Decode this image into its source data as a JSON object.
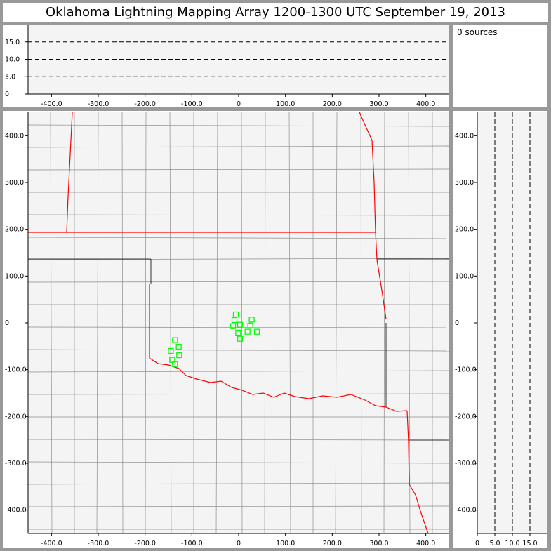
{
  "title": "Oklahoma Lightning Mapping Array   1200-1300 UTC  September 19, 2013",
  "sources_label": "0 sources",
  "colors": {
    "station": "#00ff00",
    "state_border": "#ff0000",
    "county": "#8c8c8c",
    "plot_bg": "#f4f4f4",
    "frame": "#999999"
  },
  "chart_data": [
    {
      "type": "line",
      "name": "altitude-vs-east-west",
      "xlim": [
        -450,
        450
      ],
      "ylim": [
        0,
        20
      ],
      "xticks": [
        "-400.0",
        "-300.0",
        "-200.0",
        "-100.0",
        "0",
        "100.0",
        "200.0",
        "300.0",
        "400.0"
      ],
      "xtick_values": [
        -400,
        -300,
        -200,
        -100,
        0,
        100,
        200,
        300,
        400
      ],
      "yticks": [
        "0",
        "5.0",
        "10.0",
        "15.0"
      ],
      "ytick_values": [
        0,
        5,
        10,
        15
      ],
      "dashed_reference_lines": [
        5,
        10,
        15
      ],
      "series": []
    },
    {
      "type": "scatter",
      "name": "plan-view-map",
      "xlim": [
        -450,
        450
      ],
      "ylim": [
        -450,
        450
      ],
      "xticks": [
        "-400.0",
        "-300.0",
        "-200.0",
        "-100.0",
        "0",
        "100.0",
        "200.0",
        "300.0",
        "400.0"
      ],
      "xtick_values": [
        -400,
        -300,
        -200,
        -100,
        0,
        100,
        200,
        300,
        400
      ],
      "yticks": [
        "400.0",
        "300.0",
        "200.0",
        "100.0",
        "0",
        "-100.0",
        "-200.0",
        "-300.0",
        "-400.0"
      ],
      "ytick_values": [
        400,
        300,
        200,
        100,
        0,
        -100,
        -200,
        -300,
        -400
      ],
      "stations": [
        [
          -6,
          18
        ],
        [
          -9,
          6
        ],
        [
          -12,
          -7
        ],
        [
          3,
          -4
        ],
        [
          -1,
          -21
        ],
        [
          3,
          -34
        ],
        [
          28,
          7
        ],
        [
          25,
          -6
        ],
        [
          19,
          -19
        ],
        [
          39,
          -19
        ],
        [
          -136,
          -37
        ],
        [
          -128,
          -51
        ],
        [
          -145,
          -60
        ],
        [
          -127,
          -69
        ],
        [
          -142,
          -79
        ],
        [
          -136,
          -88
        ]
      ]
    },
    {
      "type": "line",
      "name": "north-south-vs-altitude",
      "xlim": [
        0,
        20
      ],
      "ylim": [
        -450,
        450
      ],
      "xticks": [
        "0",
        "5.0",
        "10.0",
        "15.0"
      ],
      "xtick_values": [
        0,
        5,
        10,
        15
      ],
      "dashed_reference_lines": [
        5,
        10,
        15
      ],
      "series": []
    }
  ]
}
